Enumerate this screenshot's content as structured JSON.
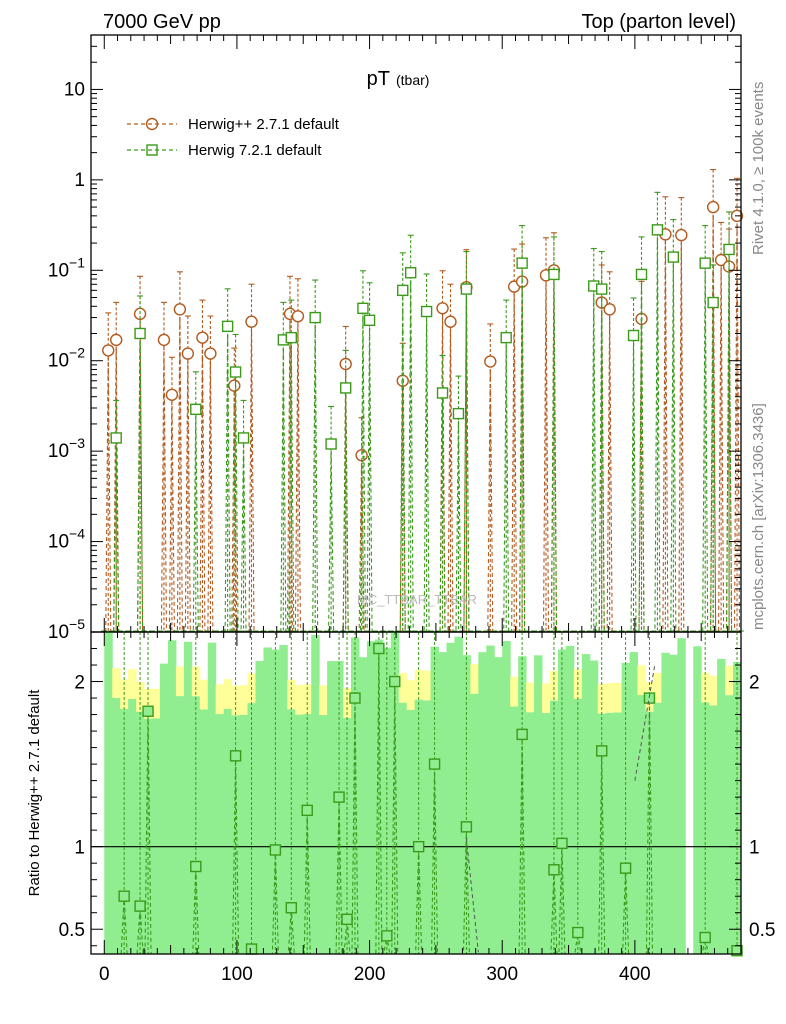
{
  "header": {
    "left": "7000 GeV pp",
    "right": "Top (parton level)"
  },
  "side_labels": {
    "top": "Rivet 4.1.0, ≥ 100k events",
    "bottom": "mcplots.cern.ch [arXiv:1306.3436]"
  },
  "watermark": "MC_TTBAR_TTBAR",
  "colors": {
    "herwig_pp": "#b35a1f",
    "herwig7": "#3a9a1a",
    "band_green": "#90ee90",
    "band_yellow": "#ffff99"
  },
  "chart_data": [
    {
      "id": "main",
      "type": "scatter",
      "title": "pT",
      "title_sub": "(tbar)",
      "xlim": [
        -10,
        480
      ],
      "ylim": [
        1e-05,
        40
      ],
      "yscale": "log",
      "ytick_labels": [
        "10^-5",
        "10^-4",
        "10^-3",
        "10^-2",
        "10^-1",
        "1",
        "10"
      ],
      "legend_position": "top-left",
      "series": [
        {
          "name": "Herwig++ 2.7.1 default",
          "marker": "circle",
          "points": [
            [
              3,
              0.013
            ],
            [
              9,
              0.017
            ],
            [
              27,
              0.033
            ],
            [
              45,
              0.017
            ],
            [
              51,
              0.0042
            ],
            [
              57,
              0.037
            ],
            [
              63,
              0.012
            ],
            [
              74,
              0.018
            ],
            [
              80,
              0.012
            ],
            [
              98,
              0.0053
            ],
            [
              111,
              0.027
            ],
            [
              140,
              0.033
            ],
            [
              146,
              0.031
            ],
            [
              182,
              0.0092
            ],
            [
              194,
              0.0009
            ],
            [
              225,
              0.006
            ],
            [
              255,
              0.038
            ],
            [
              261,
              0.027
            ],
            [
              273,
              0.065
            ],
            [
              291,
              0.0098
            ],
            [
              309,
              0.066
            ],
            [
              315,
              0.075
            ],
            [
              333,
              0.088
            ],
            [
              339,
              0.1
            ],
            [
              375,
              0.044
            ],
            [
              381,
              0.037
            ],
            [
              405,
              0.029
            ],
            [
              423,
              0.25
            ],
            [
              435,
              0.245
            ],
            [
              459,
              0.5
            ],
            [
              465,
              0.13
            ],
            [
              471,
              0.11
            ],
            [
              477,
              0.4
            ]
          ]
        },
        {
          "name": "Herwig 7.2.1 default",
          "marker": "square",
          "points": [
            [
              9,
              0.0014
            ],
            [
              27,
              0.02
            ],
            [
              69,
              0.0029
            ],
            [
              93,
              0.024
            ],
            [
              99,
              0.0075
            ],
            [
              105,
              0.0014
            ],
            [
              135,
              0.017
            ],
            [
              141,
              0.018
            ],
            [
              159,
              0.03
            ],
            [
              171,
              0.0012
            ],
            [
              182,
              0.005
            ],
            [
              195,
              0.038
            ],
            [
              200,
              0.028
            ],
            [
              225,
              0.06
            ],
            [
              231,
              0.094
            ],
            [
              243,
              0.035
            ],
            [
              255,
              0.0044
            ],
            [
              267,
              0.0026
            ],
            [
              273,
              0.062
            ],
            [
              303,
              0.018
            ],
            [
              315,
              0.12
            ],
            [
              339,
              0.09
            ],
            [
              369,
              0.067
            ],
            [
              375,
              0.062
            ],
            [
              399,
              0.019
            ],
            [
              405,
              0.09
            ],
            [
              417,
              0.28
            ],
            [
              429,
              0.14
            ],
            [
              453,
              0.12
            ],
            [
              459,
              0.044
            ],
            [
              471,
              0.17
            ]
          ]
        }
      ]
    },
    {
      "id": "ratio",
      "type": "scatter",
      "ylabel": "Ratio to Herwig++ 2.7.1 default",
      "xlim": [
        -10,
        480
      ],
      "ylim": [
        0.35,
        2.3
      ],
      "ytick_labels": [
        "0.5",
        "1",
        "2"
      ],
      "xtick_labels": [
        "0",
        "100",
        "200",
        "300",
        "400"
      ],
      "reference_line": 1,
      "series": [
        {
          "name": "Herwig 7.2.1 default",
          "marker": "square",
          "points": [
            [
              15,
              0.7
            ],
            [
              27,
              0.64
            ],
            [
              33,
              1.82
            ],
            [
              69,
              0.88
            ],
            [
              99,
              1.55
            ],
            [
              111,
              0.38
            ],
            [
              129,
              0.98
            ],
            [
              141,
              0.63
            ],
            [
              153,
              1.22
            ],
            [
              177,
              1.3
            ],
            [
              183,
              0.56
            ],
            [
              189,
              1.9
            ],
            [
              207,
              2.2
            ],
            [
              213,
              0.46
            ],
            [
              219,
              2.0
            ],
            [
              237,
              1.0
            ],
            [
              249,
              1.5
            ],
            [
              273,
              1.12
            ],
            [
              315,
              1.68
            ],
            [
              339,
              0.86
            ],
            [
              345,
              1.02
            ],
            [
              357,
              0.48
            ],
            [
              375,
              1.58
            ],
            [
              393,
              0.87
            ],
            [
              411,
              1.9
            ],
            [
              453,
              0.45
            ],
            [
              477,
              0.37
            ]
          ]
        }
      ]
    }
  ]
}
